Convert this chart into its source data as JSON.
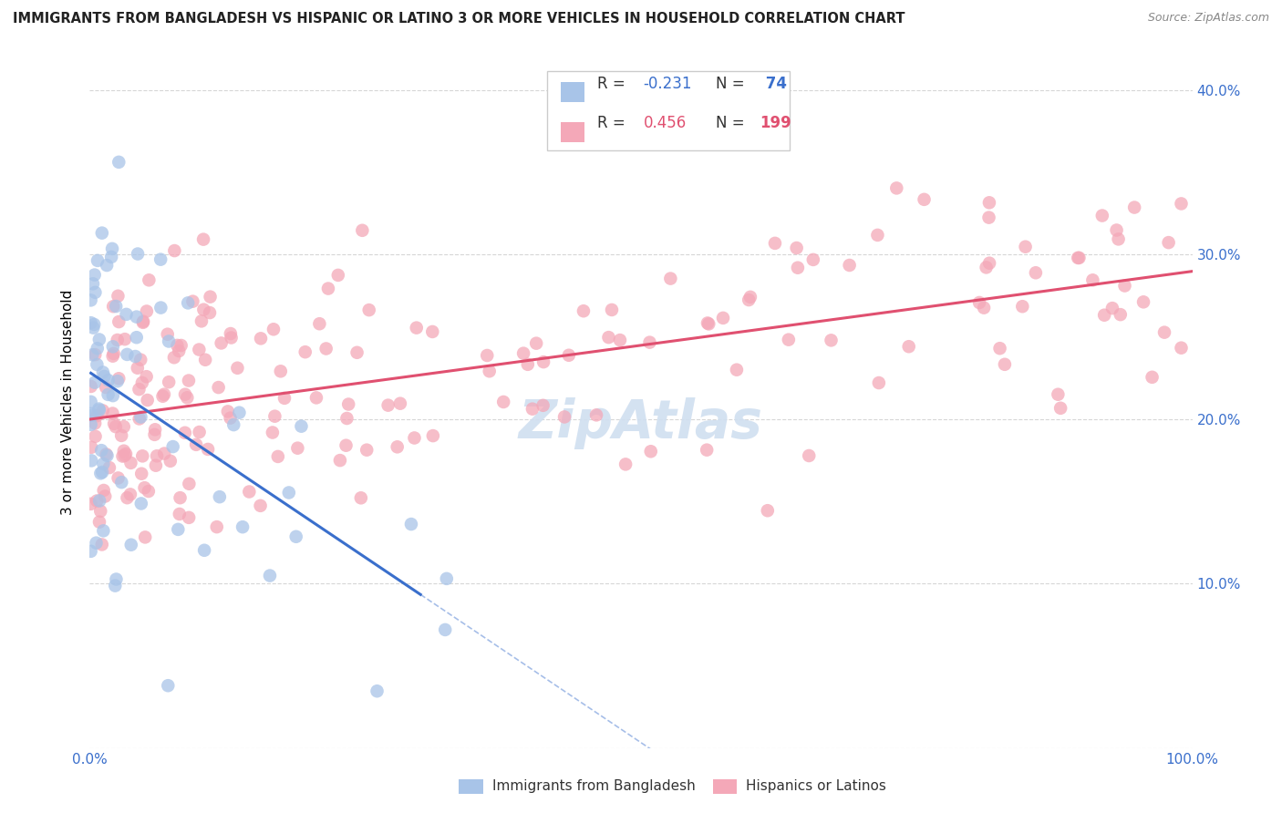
{
  "title": "IMMIGRANTS FROM BANGLADESH VS HISPANIC OR LATINO 3 OR MORE VEHICLES IN HOUSEHOLD CORRELATION CHART",
  "source": "Source: ZipAtlas.com",
  "ylabel": "3 or more Vehicles in Household",
  "xlabel_blue": "Immigrants from Bangladesh",
  "xlabel_pink": "Hispanics or Latinos",
  "blue_R": -0.231,
  "blue_N": 74,
  "pink_R": 0.456,
  "pink_N": 199,
  "xmin": 0.0,
  "xmax": 1.0,
  "ymin": 0.0,
  "ymax": 0.42,
  "yticks": [
    0.0,
    0.1,
    0.2,
    0.3,
    0.4
  ],
  "ytick_labels": [
    "",
    "10.0%",
    "20.0%",
    "30.0%",
    "40.0%"
  ],
  "xticks": [
    0.0,
    0.25,
    0.5,
    0.75,
    1.0
  ],
  "xtick_labels": [
    "0.0%",
    "",
    "",
    "",
    "100.0%"
  ],
  "blue_scatter_color": "#a8c4e8",
  "pink_scatter_color": "#f4a8b8",
  "blue_line_color": "#3a6fcc",
  "pink_line_color": "#e05070",
  "grid_color": "#cccccc",
  "watermark_color": "#d0dff0",
  "legend_edge_color": "#cccccc",
  "title_color": "#222222",
  "source_color": "#888888",
  "tick_color": "#3a6fcc"
}
